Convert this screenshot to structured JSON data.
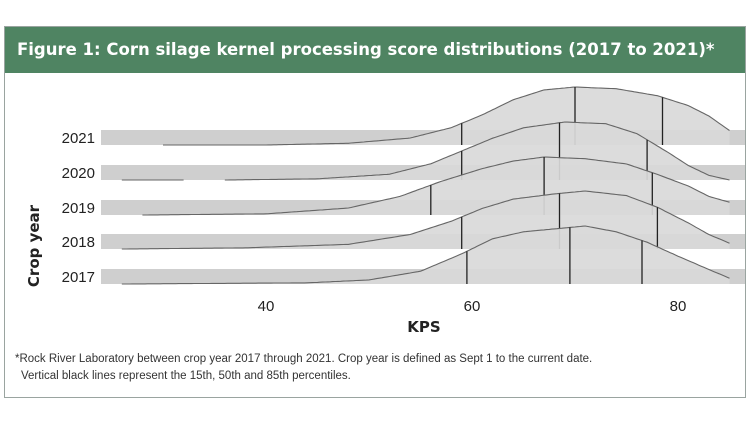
{
  "chart_data": {
    "type": "ridgeline",
    "title": "Figure 1: Corn silage kernel processing score distributions (2017 to 2021)*",
    "xlabel": "KPS",
    "ylabel": "Crop year",
    "xlim": [
      26,
      85
    ],
    "x_ticks": [
      40,
      60,
      80
    ],
    "categories": [
      "2021",
      "2020",
      "2019",
      "2018",
      "2017"
    ],
    "series": [
      {
        "name": "2021",
        "x_range": [
          30,
          85
        ],
        "density": [
          [
            30,
            0.0
          ],
          [
            40,
            0.0
          ],
          [
            48,
            0.03
          ],
          [
            54,
            0.12
          ],
          [
            58,
            0.3
          ],
          [
            61,
            0.52
          ],
          [
            64,
            0.78
          ],
          [
            67,
            0.95
          ],
          [
            70,
            1.0
          ],
          [
            74,
            0.97
          ],
          [
            78,
            0.85
          ],
          [
            81,
            0.68
          ],
          [
            83,
            0.5
          ],
          [
            85,
            0.25
          ]
        ],
        "percentiles": [
          59,
          70,
          78.5
        ]
      },
      {
        "name": "2020",
        "x_range": [
          26,
          85
        ],
        "gap": [
          32,
          36
        ],
        "density": [
          [
            26,
            0.0
          ],
          [
            36,
            0.0
          ],
          [
            45,
            0.02
          ],
          [
            52,
            0.1
          ],
          [
            56,
            0.28
          ],
          [
            59,
            0.5
          ],
          [
            62,
            0.72
          ],
          [
            65,
            0.9
          ],
          [
            69,
            1.0
          ],
          [
            73,
            0.97
          ],
          [
            76,
            0.8
          ],
          [
            79,
            0.48
          ],
          [
            81,
            0.25
          ],
          [
            83,
            0.08
          ],
          [
            85,
            0.0
          ]
        ],
        "percentiles": [
          59,
          68.5,
          77
        ]
      },
      {
        "name": "2019",
        "x_range": [
          28,
          85
        ],
        "density": [
          [
            28,
            0.0
          ],
          [
            40,
            0.02
          ],
          [
            48,
            0.12
          ],
          [
            53,
            0.32
          ],
          [
            57,
            0.58
          ],
          [
            61,
            0.8
          ],
          [
            64,
            0.93
          ],
          [
            67,
            1.0
          ],
          [
            71,
            0.97
          ],
          [
            75,
            0.88
          ],
          [
            78,
            0.7
          ],
          [
            81,
            0.5
          ],
          [
            83,
            0.32
          ],
          [
            85,
            0.22
          ]
        ],
        "percentiles": [
          56,
          67,
          77.5
        ]
      },
      {
        "name": "2018",
        "x_range": [
          26,
          85
        ],
        "density": [
          [
            26,
            0.0
          ],
          [
            38,
            0.02
          ],
          [
            48,
            0.08
          ],
          [
            54,
            0.25
          ],
          [
            58,
            0.48
          ],
          [
            61,
            0.7
          ],
          [
            64,
            0.86
          ],
          [
            68,
            0.95
          ],
          [
            71,
            1.0
          ],
          [
            75,
            0.92
          ],
          [
            78,
            0.72
          ],
          [
            81,
            0.45
          ],
          [
            83,
            0.25
          ],
          [
            85,
            0.1
          ]
        ],
        "percentiles": [
          59,
          68.5,
          78
        ]
      },
      {
        "name": "2017",
        "x_range": [
          26,
          85
        ],
        "density": [
          [
            26,
            0.0
          ],
          [
            44,
            0.02
          ],
          [
            50,
            0.07
          ],
          [
            55,
            0.22
          ],
          [
            59,
            0.52
          ],
          [
            62,
            0.78
          ],
          [
            65,
            0.9
          ],
          [
            68,
            0.95
          ],
          [
            71,
            1.0
          ],
          [
            74,
            0.9
          ],
          [
            77,
            0.72
          ],
          [
            80,
            0.48
          ],
          [
            83,
            0.25
          ],
          [
            85,
            0.1
          ]
        ],
        "percentiles": [
          59.5,
          69.5,
          76.5
        ]
      }
    ]
  },
  "footnote": {
    "line1": "*Rock River Laboratory between crop year 2017 through 2021. Crop year is defined as Sept 1 to the current date.",
    "line2": "Vertical black lines represent the 15th, 50th and 85th percentiles."
  },
  "colors": {
    "header": "#4f8462",
    "ridge_fill": "#d9d9d9",
    "ridge_stroke": "#666666",
    "percentile_line": "#222222",
    "band": "#cfcfcf"
  }
}
